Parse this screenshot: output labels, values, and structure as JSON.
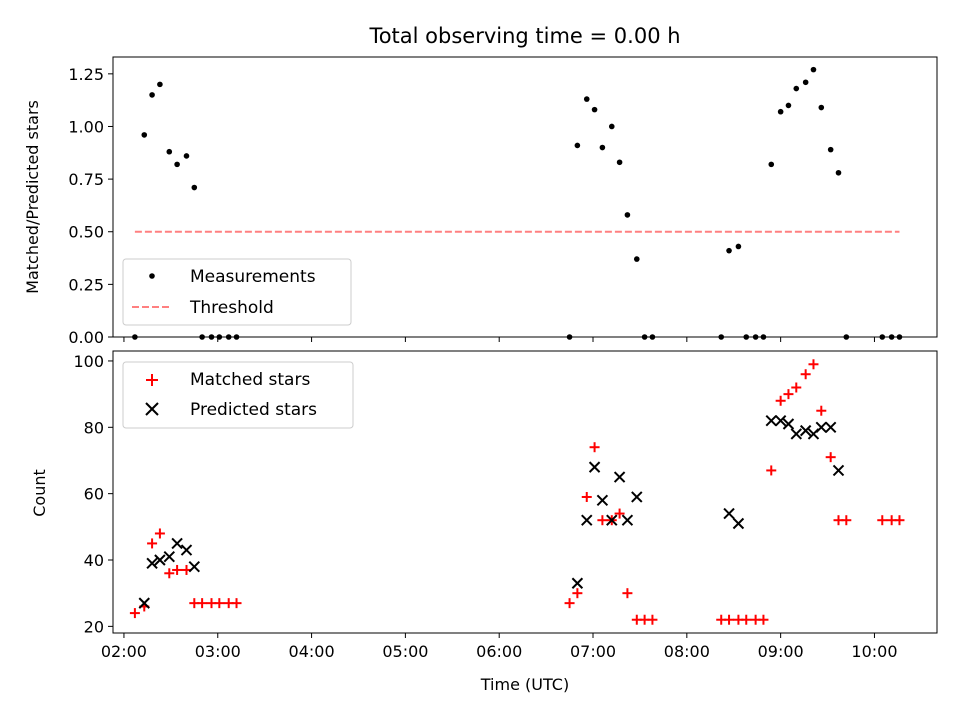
{
  "chart_data": [
    {
      "type": "scatter",
      "title": "Total observing time = 0.00 h",
      "xlabel": "",
      "ylabel": "Matched/Predicted stars",
      "xlim": [
        "01:53",
        "10:40"
      ],
      "ylim": [
        0,
        1.33
      ],
      "y_ticks": [
        0.0,
        0.25,
        0.5,
        0.75,
        1.0,
        1.25
      ],
      "y_tick_labels": [
        "0.00",
        "0.25",
        "0.50",
        "0.75",
        "1.00",
        "1.25"
      ],
      "x_ticks": [
        "02:00",
        "03:00",
        "04:00",
        "05:00",
        "06:00",
        "07:00",
        "08:00",
        "09:00",
        "10:00"
      ],
      "x_tick_labels_visible": false,
      "grid": false,
      "legend": "lower-left",
      "series": [
        {
          "name": "Measurements",
          "kind": "scatter",
          "marker": "dot",
          "color": "#000000",
          "x": [
            "02:07",
            "02:13",
            "02:18",
            "02:23",
            "02:29",
            "02:34",
            "02:40",
            "02:45",
            "02:50",
            "02:56",
            "03:01",
            "03:07",
            "03:12",
            "06:45",
            "06:50",
            "06:56",
            "07:01",
            "07:06",
            "07:12",
            "07:17",
            "07:22",
            "07:28",
            "07:33",
            "07:38",
            "08:22",
            "08:27",
            "08:33",
            "08:38",
            "08:44",
            "08:49",
            "08:54",
            "09:00",
            "09:05",
            "09:10",
            "09:16",
            "09:21",
            "09:26",
            "09:32",
            "09:37",
            "09:42",
            "10:05",
            "10:11",
            "10:16"
          ],
          "y": [
            0.0,
            0.96,
            1.15,
            1.2,
            0.88,
            0.82,
            0.86,
            0.71,
            0.0,
            0.0,
            0.0,
            0.0,
            0.0,
            0.0,
            0.91,
            1.13,
            1.08,
            0.9,
            1.0,
            0.83,
            0.58,
            0.37,
            0.0,
            0.0,
            0.0,
            0.41,
            0.43,
            0.0,
            0.0,
            0.0,
            0.82,
            1.07,
            1.1,
            1.18,
            1.21,
            1.27,
            1.09,
            0.89,
            0.78,
            0.0,
            0.0,
            0.0,
            0.0
          ]
        },
        {
          "name": "Threshold",
          "kind": "line",
          "style": "dashed",
          "color": "#ff8080",
          "x": [
            "02:07",
            "10:16"
          ],
          "y": [
            0.5,
            0.5
          ]
        }
      ]
    },
    {
      "type": "scatter",
      "title": "",
      "xlabel": "Time (UTC)",
      "ylabel": "Count",
      "xlim": [
        "01:53",
        "10:40"
      ],
      "ylim": [
        18,
        103
      ],
      "y_ticks": [
        20,
        40,
        60,
        80,
        100
      ],
      "y_tick_labels": [
        "20",
        "40",
        "60",
        "80",
        "100"
      ],
      "x_ticks": [
        "02:00",
        "03:00",
        "04:00",
        "05:00",
        "06:00",
        "07:00",
        "08:00",
        "09:00",
        "10:00"
      ],
      "x_tick_labels": [
        "02:00",
        "03:00",
        "04:00",
        "05:00",
        "06:00",
        "07:00",
        "08:00",
        "09:00",
        "10:00"
      ],
      "grid": false,
      "legend": "top-left",
      "series": [
        {
          "name": "Matched stars",
          "kind": "scatter",
          "marker": "plus",
          "color": "#ff0000",
          "x": [
            "02:07",
            "02:13",
            "02:18",
            "02:23",
            "02:29",
            "02:34",
            "02:40",
            "02:45",
            "02:50",
            "02:56",
            "03:01",
            "03:07",
            "03:12",
            "06:45",
            "06:50",
            "06:56",
            "07:01",
            "07:06",
            "07:12",
            "07:17",
            "07:22",
            "07:28",
            "07:33",
            "07:38",
            "08:22",
            "08:27",
            "08:33",
            "08:38",
            "08:44",
            "08:49",
            "08:54",
            "09:00",
            "09:05",
            "09:10",
            "09:16",
            "09:21",
            "09:26",
            "09:32",
            "09:37",
            "09:42",
            "10:05",
            "10:11",
            "10:16"
          ],
          "y": [
            24,
            26,
            45,
            48,
            36,
            37,
            37,
            27,
            27,
            27,
            27,
            27,
            27,
            27,
            30,
            59,
            74,
            52,
            52,
            54,
            30,
            22,
            22,
            22,
            22,
            22,
            22,
            22,
            22,
            22,
            67,
            88,
            90,
            92,
            96,
            99,
            85,
            71,
            52,
            52,
            52,
            52,
            52
          ]
        },
        {
          "name": "Predicted stars",
          "kind": "scatter",
          "marker": "x",
          "color": "#000000",
          "x": [
            "02:13",
            "02:18",
            "02:23",
            "02:29",
            "02:34",
            "02:40",
            "02:45",
            "06:50",
            "06:56",
            "07:01",
            "07:06",
            "07:12",
            "07:17",
            "07:22",
            "07:28",
            "08:27",
            "08:33",
            "08:54",
            "09:00",
            "09:05",
            "09:10",
            "09:16",
            "09:21",
            "09:26",
            "09:32",
            "09:37"
          ],
          "y": [
            27,
            39,
            40,
            41,
            45,
            43,
            38,
            33,
            52,
            68,
            58,
            52,
            65,
            52,
            59,
            54,
            51,
            82,
            82,
            81,
            78,
            79,
            78,
            80,
            80,
            67
          ]
        }
      ]
    }
  ]
}
